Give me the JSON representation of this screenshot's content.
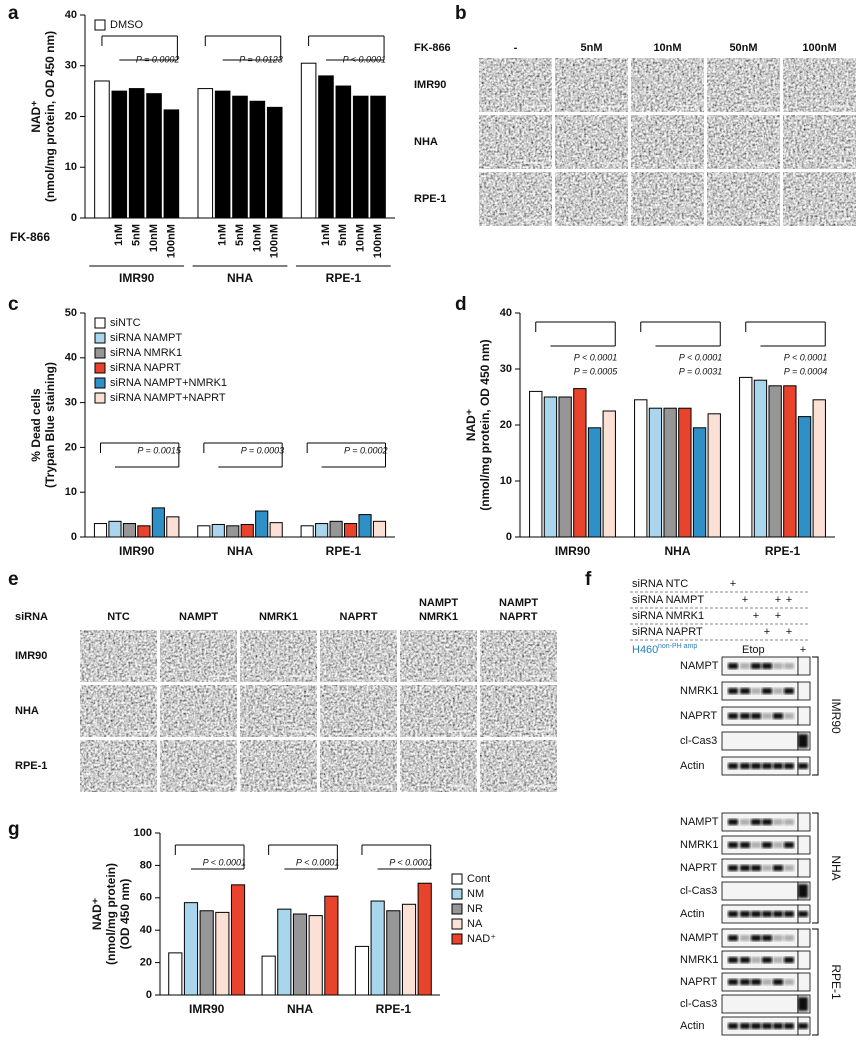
{
  "panel_labels": [
    "a",
    "b",
    "c",
    "d",
    "e",
    "f",
    "g"
  ],
  "chart_data": [
    {
      "type": "bar",
      "ylabel": [
        "NAD⁺",
        "(nmol/mg protein, OD 450 nm)"
      ],
      "xlabel": "FK-866",
      "groups": [
        "IMR90",
        "NHA",
        "RPE-1"
      ],
      "series": [
        {
          "name": "DMSO",
          "color": "#ffffff",
          "values": [
            27,
            25.5,
            30.5
          ]
        },
        {
          "name": "1nM",
          "color": "#000000",
          "values": [
            25,
            25,
            28
          ],
          "legend": false
        },
        {
          "name": "5nM",
          "color": "#000000",
          "values": [
            25.5,
            24,
            26
          ],
          "legend": false
        },
        {
          "name": "10nM",
          "color": "#000000",
          "values": [
            24.5,
            23,
            24
          ],
          "legend": false
        },
        {
          "name": "100nM",
          "color": "#000000",
          "values": [
            21.3,
            21.8,
            24
          ],
          "legend": false
        }
      ],
      "ylim": [
        0,
        40
      ],
      "yticks": [
        0,
        10,
        20,
        30,
        40
      ],
      "legend": "upper left",
      "annotations": [
        [
          "P = 0.0002"
        ],
        [
          "P = 0.0123"
        ],
        [
          "P < 0.0001"
        ]
      ]
    },
    {
      "type": "bar",
      "ylabel": [
        "% Dead cells",
        "(Trypan Blue staining)"
      ],
      "groups": [
        "IMR90",
        "NHA",
        "RPE-1"
      ],
      "series": [
        {
          "name": "siNTC",
          "color": "#ffffff",
          "values": [
            3,
            2.5,
            2.5
          ]
        },
        {
          "name": "siRNA NAMPT",
          "color": "#a9d6ec",
          "values": [
            3.5,
            2.8,
            3
          ]
        },
        {
          "name": "siRNA NMRK1",
          "color": "#969696",
          "values": [
            3,
            2.5,
            3.5
          ]
        },
        {
          "name": "siRNA NAPRT",
          "color": "#e8432d",
          "values": [
            2.5,
            2.8,
            3
          ]
        },
        {
          "name": "siRNA NAMPT+NMRK1",
          "color": "#2f8fc7",
          "values": [
            6.5,
            5.8,
            5
          ]
        },
        {
          "name": "siRNA NAMPT+NAPRT",
          "color": "#fbe1d5",
          "values": [
            4.5,
            3.2,
            3.5
          ]
        }
      ],
      "ylim": [
        0,
        50
      ],
      "yticks": [
        0,
        10,
        20,
        30,
        40,
        50
      ],
      "legend": "upper left",
      "annotations": [
        [
          "P = 0.0015"
        ],
        [
          "P = 0.0003"
        ],
        [
          "P = 0.0002"
        ]
      ]
    },
    {
      "type": "bar",
      "ylabel": [
        "NAD⁺",
        "(nmol/mg protein, OD 450 nm)"
      ],
      "groups": [
        "IMR90",
        "NHA",
        "RPE-1"
      ],
      "series": [
        {
          "color": "#ffffff",
          "values": [
            26,
            24.5,
            28.5
          ]
        },
        {
          "color": "#a9d6ec",
          "values": [
            25,
            23,
            28
          ]
        },
        {
          "color": "#969696",
          "values": [
            25,
            23,
            27
          ]
        },
        {
          "color": "#e8432d",
          "values": [
            26.5,
            23,
            27
          ]
        },
        {
          "color": "#2f8fc7",
          "values": [
            19.5,
            19.5,
            21.5
          ]
        },
        {
          "color": "#fbe1d5",
          "values": [
            22.5,
            22,
            24.5
          ]
        }
      ],
      "ylim": [
        0,
        40
      ],
      "yticks": [
        0,
        10,
        20,
        30,
        40
      ],
      "annotations": [
        [
          "P < 0.0001",
          "P = 0.0005"
        ],
        [
          "P < 0.0001",
          "P = 0.0031"
        ],
        [
          "P < 0.0001",
          "P = 0.0004"
        ]
      ]
    },
    {
      "type": "bar",
      "ylabel": [
        "NAD⁺",
        "(nmol/mg protein)",
        "(OD 450 nm)"
      ],
      "groups": [
        "IMR90",
        "NHA",
        "RPE-1"
      ],
      "series": [
        {
          "name": "Cont",
          "color": "#ffffff",
          "values": [
            26,
            24,
            30
          ]
        },
        {
          "name": "NM",
          "color": "#a9d6ec",
          "values": [
            57,
            53,
            58
          ]
        },
        {
          "name": "NR",
          "color": "#969696",
          "values": [
            52,
            50,
            52
          ]
        },
        {
          "name": "NA",
          "color": "#fbe1d5",
          "values": [
            51,
            49,
            56
          ]
        },
        {
          "name": "NAD⁺",
          "color": "#e8432d",
          "values": [
            68,
            61,
            69
          ]
        }
      ],
      "ylim": [
        0,
        100
      ],
      "yticks": [
        0,
        20,
        40,
        60,
        80,
        100
      ],
      "legend": "right",
      "annotations": [
        [
          "P < 0.0001"
        ],
        [
          "P < 0.0001"
        ],
        [
          "P < 0.0001"
        ]
      ]
    }
  ],
  "panel_b": {
    "treatment_label": "FK-866",
    "columns": [
      "-",
      "5nM",
      "10nM",
      "50nM",
      "100nM"
    ],
    "rows": [
      "IMR90",
      "NHA",
      "RPE-1"
    ]
  },
  "panel_e": {
    "treatment_label": "siRNA",
    "columns": [
      [
        "NTC"
      ],
      [
        "NAMPT"
      ],
      [
        "NMRK1"
      ],
      [
        "NAPRT"
      ],
      [
        "NAMPT",
        "NMRK1"
      ],
      [
        "NAMPT",
        "NAPRT"
      ]
    ],
    "rows": [
      "IMR90",
      "NHA",
      "RPE-1"
    ]
  },
  "panel_f": {
    "treatments": [
      {
        "label": "siRNA NTC",
        "lanes": [
          "+",
          null,
          null,
          null,
          null,
          null
        ]
      },
      {
        "label": "siRNA NAMPT",
        "lanes": [
          null,
          "+",
          null,
          null,
          "+",
          "+"
        ]
      },
      {
        "label": "siRNA NMRK1",
        "lanes": [
          null,
          null,
          "+",
          null,
          "+",
          null
        ]
      },
      {
        "label": "siRNA NAPRT",
        "lanes": [
          null,
          null,
          null,
          "+",
          null,
          "+"
        ]
      }
    ],
    "control": {
      "label": "H460",
      "superscript": "non-PH amp",
      "treatment": "Etop",
      "mark": "+"
    },
    "cell_lines": [
      {
        "name": "IMR90",
        "blots": [
          "NAMPT",
          "NMRK1",
          "NAPRT",
          "cl-Cas3",
          "Actin"
        ]
      },
      {
        "name": "NHA",
        "blots": [
          "NAMPT",
          "NMRK1",
          "NAPRT",
          "cl-Cas3",
          "Actin"
        ]
      },
      {
        "name": "RPE-1",
        "blots": [
          "NAMPT",
          "NMRK1",
          "NAPRT",
          "cl-Cas3",
          "Actin"
        ]
      }
    ]
  }
}
